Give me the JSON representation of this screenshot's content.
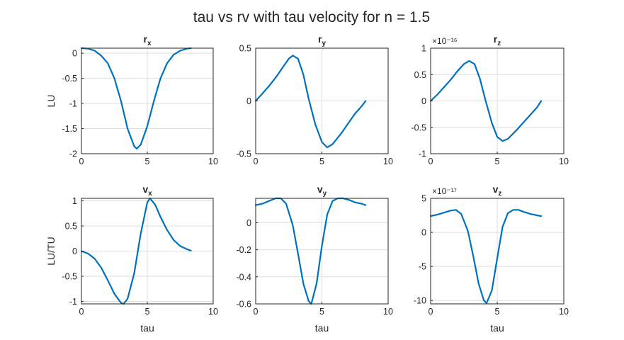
{
  "figure_title": "tau vs rv with tau velocity for n = 1.5",
  "colors": {
    "line": "#0072BD",
    "axis": "#262626",
    "grid": "#dfdfdf",
    "background": "#ffffff"
  },
  "chart_data": [
    {
      "type": "line",
      "title_main": "r",
      "title_sub": "x",
      "xlim": [
        0,
        10
      ],
      "ylim": [
        -2,
        0.1
      ],
      "xticks": [
        "0",
        "5",
        "10"
      ],
      "yticks": [
        "-2",
        "-1.5",
        "-1",
        "-0.5",
        "0"
      ],
      "ytick_values": [
        -2,
        -1.5,
        -1,
        -0.5,
        0
      ],
      "exponent": "",
      "xlabel": "",
      "ylabel": "LU",
      "grid": true,
      "x": [
        0,
        0.5,
        1.0,
        1.5,
        2.0,
        2.5,
        3.0,
        3.5,
        4.0,
        4.2,
        4.5,
        5.0,
        5.5,
        6.0,
        6.5,
        7.0,
        7.5,
        8.0,
        8.3
      ],
      "values": [
        0.1,
        0.09,
        0.05,
        -0.05,
        -0.2,
        -0.5,
        -0.95,
        -1.5,
        -1.85,
        -1.9,
        -1.82,
        -1.45,
        -0.95,
        -0.5,
        -0.2,
        -0.03,
        0.05,
        0.09,
        0.1
      ]
    },
    {
      "type": "line",
      "title_main": "r",
      "title_sub": "y",
      "xlim": [
        0,
        10
      ],
      "ylim": [
        -0.5,
        0.5
      ],
      "xticks": [
        "0",
        "5",
        "10"
      ],
      "yticks": [
        "-0.5",
        "0",
        "0.5"
      ],
      "ytick_values": [
        -0.5,
        0,
        0.5
      ],
      "exponent": "",
      "xlabel": "",
      "ylabel": "",
      "grid": true,
      "x": [
        0,
        0.5,
        1.0,
        1.5,
        2.0,
        2.5,
        2.8,
        3.2,
        3.6,
        4.0,
        4.5,
        5.0,
        5.4,
        5.8,
        6.5,
        7.0,
        7.5,
        8.0,
        8.3
      ],
      "values": [
        0,
        0.07,
        0.14,
        0.22,
        0.31,
        0.4,
        0.43,
        0.4,
        0.25,
        0.02,
        -0.22,
        -0.39,
        -0.44,
        -0.41,
        -0.3,
        -0.21,
        -0.12,
        -0.05,
        0
      ]
    },
    {
      "type": "line",
      "title_main": "r",
      "title_sub": "z",
      "xlim": [
        0,
        10
      ],
      "ylim": [
        -1,
        1
      ],
      "xticks": [
        "0",
        "5",
        "10"
      ],
      "yticks": [
        "-1",
        "-0.5",
        "0",
        "0.5",
        "1"
      ],
      "ytick_values": [
        -1,
        -0.5,
        0,
        0.5,
        1
      ],
      "exponent": "×10⁻¹⁶",
      "xlabel": "",
      "ylabel": "",
      "grid": true,
      "x": [
        0,
        0.5,
        1.0,
        1.5,
        2.0,
        2.5,
        2.9,
        3.3,
        3.7,
        4.1,
        4.6,
        5.0,
        5.4,
        5.8,
        6.5,
        7.0,
        7.5,
        8.0,
        8.3
      ],
      "values": [
        0,
        0.12,
        0.26,
        0.4,
        0.56,
        0.7,
        0.76,
        0.7,
        0.42,
        0.03,
        -0.42,
        -0.68,
        -0.76,
        -0.72,
        -0.54,
        -0.4,
        -0.26,
        -0.12,
        0
      ]
    },
    {
      "type": "line",
      "title_main": "v",
      "title_sub": "x",
      "xlim": [
        0,
        10
      ],
      "ylim": [
        -1.05,
        1.05
      ],
      "xticks": [
        "0",
        "5",
        "10"
      ],
      "yticks": [
        "-1",
        "-0.5",
        "0",
        "0.5",
        "1"
      ],
      "ytick_values": [
        -1,
        -0.5,
        0,
        0.5,
        1
      ],
      "exponent": "",
      "xlabel": "tau",
      "ylabel": "LU/TU",
      "grid": true,
      "x": [
        0,
        0.5,
        1.0,
        1.5,
        2.0,
        2.5,
        3.0,
        3.2,
        3.5,
        4.0,
        4.5,
        5.0,
        5.2,
        5.6,
        6.0,
        6.5,
        7.0,
        7.5,
        8.0,
        8.3
      ],
      "values": [
        0,
        -0.05,
        -0.15,
        -0.33,
        -0.58,
        -0.85,
        -1.03,
        -1.05,
        -0.95,
        -0.45,
        0.35,
        0.97,
        1.05,
        0.92,
        0.68,
        0.42,
        0.22,
        0.1,
        0.04,
        0.01
      ]
    },
    {
      "type": "line",
      "title_main": "v",
      "title_sub": "y",
      "xlim": [
        0,
        10
      ],
      "ylim": [
        -0.6,
        0.18
      ],
      "xticks": [
        "0",
        "5",
        "10"
      ],
      "yticks": [
        "-0.6",
        "-0.4",
        "-0.2",
        "0"
      ],
      "ytick_values": [
        -0.6,
        -0.4,
        -0.2,
        0
      ],
      "exponent": "",
      "xlabel": "tau",
      "ylabel": "",
      "grid": true,
      "x": [
        0,
        0.5,
        1.0,
        1.5,
        1.9,
        2.3,
        2.8,
        3.2,
        3.6,
        4.0,
        4.2,
        4.6,
        5.0,
        5.4,
        5.8,
        6.2,
        6.6,
        7.0,
        7.5,
        8.0,
        8.3
      ],
      "values": [
        0.13,
        0.14,
        0.16,
        0.18,
        0.18,
        0.14,
        -0.02,
        -0.23,
        -0.45,
        -0.58,
        -0.6,
        -0.45,
        -0.17,
        0.06,
        0.16,
        0.18,
        0.18,
        0.17,
        0.15,
        0.14,
        0.13
      ]
    },
    {
      "type": "line",
      "title_main": "v",
      "title_sub": "z",
      "xlim": [
        0,
        10
      ],
      "ylim": [
        -10.5,
        5
      ],
      "xticks": [
        "0",
        "5",
        "10"
      ],
      "yticks": [
        "-10",
        "-5",
        "0",
        "5"
      ],
      "ytick_values": [
        -10,
        -5,
        0,
        5
      ],
      "exponent": "×10⁻¹⁷",
      "xlabel": "tau",
      "ylabel": "",
      "grid": true,
      "x": [
        0,
        0.5,
        1.0,
        1.5,
        1.9,
        2.3,
        2.8,
        3.2,
        3.6,
        4.0,
        4.2,
        4.6,
        5.0,
        5.4,
        5.8,
        6.2,
        6.6,
        7.0,
        7.5,
        8.0,
        8.3
      ],
      "values": [
        2.4,
        2.6,
        2.9,
        3.2,
        3.3,
        2.7,
        0.2,
        -3.5,
        -7.5,
        -10.0,
        -10.4,
        -8.5,
        -3.8,
        0.8,
        2.8,
        3.3,
        3.3,
        3.0,
        2.7,
        2.5,
        2.4
      ]
    }
  ]
}
